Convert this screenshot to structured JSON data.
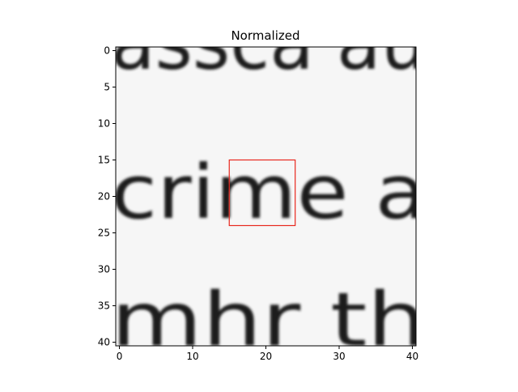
{
  "chart_data": {
    "type": "heatmap",
    "title": "Normalized",
    "xlabel": "",
    "ylabel": "",
    "xlim": [
      0,
      40
    ],
    "ylim": [
      0,
      40
    ],
    "x_ticks": [
      0,
      10,
      20,
      30,
      40
    ],
    "y_ticks": [
      0,
      5,
      10,
      15,
      20,
      25,
      30,
      35,
      40
    ],
    "colormap": "gray",
    "grid": false,
    "highlight_box": {
      "x0": 15,
      "y0": 15,
      "x1": 24,
      "y1": 24,
      "color": "#e8281e"
    },
    "rows": [
      "assca  au",
      "",
      "",
      "crime a",
      "",
      "",
      "mhr th"
    ],
    "row_y": [
      0,
      5.5,
      10,
      20.5,
      26,
      31,
      38
    ]
  }
}
